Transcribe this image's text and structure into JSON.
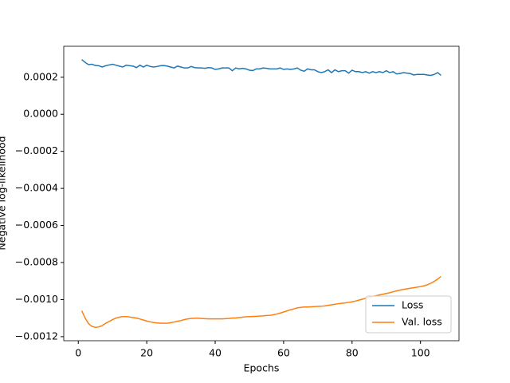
{
  "chart_data": {
    "type": "line",
    "xlabel": "Epochs",
    "ylabel": "Negative log-likelihood",
    "x": [
      1,
      2,
      3,
      4,
      5,
      6,
      7,
      8,
      9,
      10,
      11,
      12,
      13,
      14,
      15,
      16,
      17,
      18,
      19,
      20,
      21,
      22,
      23,
      24,
      25,
      26,
      27,
      28,
      29,
      30,
      31,
      32,
      33,
      34,
      35,
      36,
      37,
      38,
      39,
      40,
      41,
      42,
      43,
      44,
      45,
      46,
      47,
      48,
      49,
      50,
      51,
      52,
      53,
      54,
      55,
      56,
      57,
      58,
      59,
      60,
      61,
      62,
      63,
      64,
      65,
      66,
      67,
      68,
      69,
      70,
      71,
      72,
      73,
      74,
      75,
      76,
      77,
      78,
      79,
      80,
      81,
      82,
      83,
      84,
      85,
      86,
      87,
      88,
      89,
      90,
      91,
      92,
      93,
      94,
      95,
      96,
      97,
      98,
      99,
      100,
      101,
      102,
      103,
      104,
      105,
      106
    ],
    "series": [
      {
        "name": "Loss",
        "color": "#1f77b4",
        "values": [
          0.000295,
          0.00028,
          0.000268,
          0.00027,
          0.000263,
          0.000262,
          0.000255,
          0.000262,
          0.000266,
          0.00027,
          0.000265,
          0.00026,
          0.000255,
          0.000265,
          0.000262,
          0.00026,
          0.000252,
          0.000265,
          0.000255,
          0.000265,
          0.000258,
          0.000255,
          0.000258,
          0.000262,
          0.000263,
          0.00026,
          0.000255,
          0.00025,
          0.00026,
          0.000255,
          0.00025,
          0.00025,
          0.000258,
          0.000252,
          0.00025,
          0.00025,
          0.000248,
          0.000252,
          0.00025,
          0.000242,
          0.000245,
          0.00025,
          0.00025,
          0.00025,
          0.000235,
          0.00025,
          0.000245,
          0.000248,
          0.000245,
          0.000238,
          0.000236,
          0.000245,
          0.000245,
          0.00025,
          0.000248,
          0.000245,
          0.000245,
          0.000245,
          0.00025,
          0.000242,
          0.000245,
          0.000242,
          0.000245,
          0.00025,
          0.000238,
          0.000232,
          0.000245,
          0.00024,
          0.00024,
          0.00023,
          0.000225,
          0.00023,
          0.00024,
          0.000225,
          0.00024,
          0.00023,
          0.000235,
          0.000235,
          0.000222,
          0.000238,
          0.00023,
          0.00023,
          0.000225,
          0.00023,
          0.000222,
          0.00023,
          0.000225,
          0.00023,
          0.000225,
          0.000235,
          0.000225,
          0.00023,
          0.000218,
          0.00022,
          0.000225,
          0.000222,
          0.00022,
          0.000212,
          0.000215,
          0.000215,
          0.000215,
          0.000212,
          0.00021,
          0.000215,
          0.000225,
          0.00021
        ]
      },
      {
        "name": "Val. loss",
        "color": "#ff7f0e",
        "values": [
          -0.00106,
          -0.0011,
          -0.00113,
          -0.001145,
          -0.00115,
          -0.001148,
          -0.00114,
          -0.001128,
          -0.001118,
          -0.001108,
          -0.0011,
          -0.001095,
          -0.001092,
          -0.001092,
          -0.001094,
          -0.001097,
          -0.0011,
          -0.001105,
          -0.00111,
          -0.001116,
          -0.00112,
          -0.001124,
          -0.001126,
          -0.001127,
          -0.001128,
          -0.001127,
          -0.001125,
          -0.001121,
          -0.001117,
          -0.001113,
          -0.001108,
          -0.001104,
          -0.001102,
          -0.001101,
          -0.001101,
          -0.001102,
          -0.001103,
          -0.001104,
          -0.001104,
          -0.001104,
          -0.001104,
          -0.001104,
          -0.001103,
          -0.001102,
          -0.0011,
          -0.001099,
          -0.001097,
          -0.001095,
          -0.001093,
          -0.001092,
          -0.001091,
          -0.00109,
          -0.001089,
          -0.001088,
          -0.001086,
          -0.001085,
          -0.001082,
          -0.001078,
          -0.001073,
          -0.001067,
          -0.001061,
          -0.001055,
          -0.00105,
          -0.001045,
          -0.001042,
          -0.00104,
          -0.00104,
          -0.001039,
          -0.001038,
          -0.001037,
          -0.001036,
          -0.001034,
          -0.001031,
          -0.001028,
          -0.001025,
          -0.001022,
          -0.00102,
          -0.001018,
          -0.001015,
          -0.001012,
          -0.001008,
          -0.001003,
          -0.000998,
          -0.000993,
          -0.000988,
          -0.000983,
          -0.000979,
          -0.000975,
          -0.000971,
          -0.000967,
          -0.000963,
          -0.000958,
          -0.000953,
          -0.000949,
          -0.000945,
          -0.000942,
          -0.000939,
          -0.000936,
          -0.000933,
          -0.00093,
          -0.000926,
          -0.00092,
          -0.000912,
          -0.000902,
          -0.00089,
          -0.000875
        ]
      }
    ],
    "xlim": [
      -4.25,
      111.25
    ],
    "xticks": [
      0,
      20,
      40,
      60,
      80,
      100
    ],
    "ylim": [
      -0.001222,
      0.000367
    ],
    "yticks": [
      {
        "value": 0.0002,
        "label": "0.0002"
      },
      {
        "value": 0,
        "label": "0.0000"
      },
      {
        "value": -0.0002,
        "label": "−0.0002"
      },
      {
        "value": -0.0004,
        "label": "−0.0004"
      },
      {
        "value": -0.0006,
        "label": "−0.0006"
      },
      {
        "value": -0.0008,
        "label": "−0.0008"
      },
      {
        "value": -0.001,
        "label": "−0.0010"
      },
      {
        "value": -0.0012,
        "label": "−0.0012"
      }
    ],
    "legend": "lower right"
  }
}
